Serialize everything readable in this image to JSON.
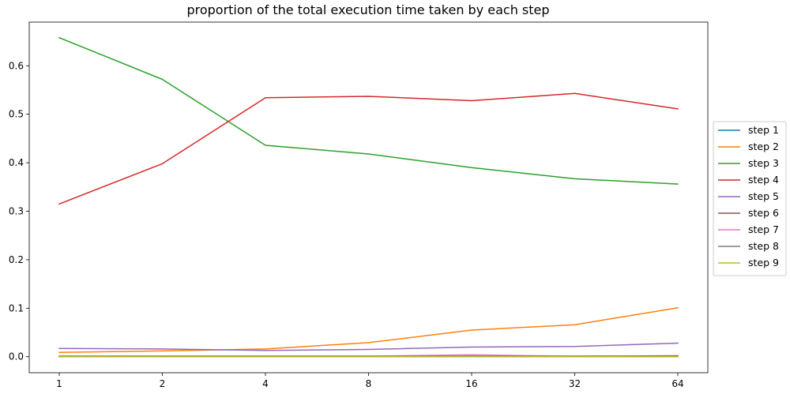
{
  "chart_data": {
    "type": "line",
    "title": "proportion of the total execution time taken by each step",
    "xlabel": "",
    "ylabel": "",
    "x": [
      1,
      2,
      4,
      8,
      16,
      32,
      64
    ],
    "x_tick_labels": [
      "1",
      "2",
      "4",
      "8",
      "16",
      "32",
      "64"
    ],
    "x_scale": "log2",
    "ylim": [
      -0.033,
      0.69
    ],
    "y_ticks": [
      0.0,
      0.1,
      0.2,
      0.3,
      0.4,
      0.5,
      0.6
    ],
    "y_tick_labels": [
      "0.0",
      "0.1",
      "0.2",
      "0.3",
      "0.4",
      "0.5",
      "0.6"
    ],
    "grid": false,
    "legend_position": "center-right, outside plot",
    "series": [
      {
        "name": "step 1",
        "color": "#1f77b4",
        "values": [
          0.001,
          0.001,
          0.001,
          0.001,
          0.001,
          0.001,
          0.001
        ]
      },
      {
        "name": "step 2",
        "color": "#ff7f0e",
        "values": [
          0.009,
          0.012,
          0.016,
          0.029,
          0.055,
          0.066,
          0.101
        ]
      },
      {
        "name": "step 3",
        "color": "#2ca02c",
        "values": [
          0.658,
          0.572,
          0.436,
          0.418,
          0.39,
          0.367,
          0.356
        ]
      },
      {
        "name": "step 4",
        "color": "#d62728",
        "values": [
          0.315,
          0.398,
          0.534,
          0.537,
          0.528,
          0.543,
          0.511
        ]
      },
      {
        "name": "step 5",
        "color": "#9467bd",
        "values": [
          0.017,
          0.016,
          0.013,
          0.015,
          0.02,
          0.021,
          0.028
        ]
      },
      {
        "name": "step 6",
        "color": "#8c564b",
        "values": [
          0.001,
          0.001,
          0.001,
          0.001,
          0.001,
          0.001,
          0.002
        ]
      },
      {
        "name": "step 7",
        "color": "#e377c2",
        "values": [
          0.001,
          0.001,
          0.001,
          0.001,
          0.004,
          0.001,
          0.001
        ]
      },
      {
        "name": "step 8",
        "color": "#7f7f7f",
        "values": [
          0.001,
          0.001,
          0.001,
          0.001,
          0.001,
          0.001,
          0.001
        ]
      },
      {
        "name": "step 9",
        "color": "#bcbd22",
        "values": [
          0.0,
          0.0,
          0.0,
          0.0,
          0.0,
          0.0,
          0.0
        ]
      }
    ]
  }
}
